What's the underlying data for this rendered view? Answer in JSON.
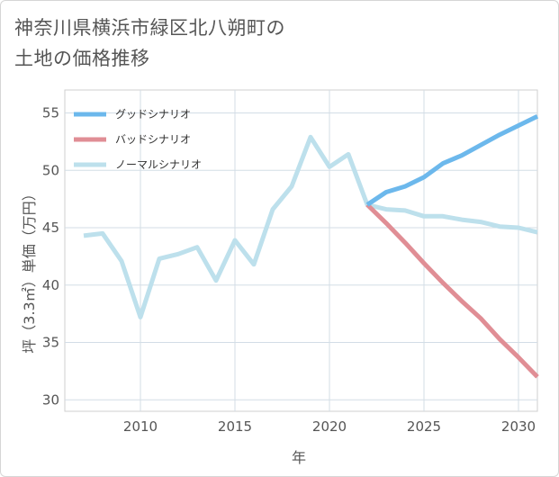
{
  "title_lines": [
    "神奈川県横浜市緑区北八朔町の",
    "土地の価格推移"
  ],
  "chart_data": {
    "type": "line",
    "title": "神奈川県横浜市緑区北八朔町の土地の価格推移",
    "xlabel": "年",
    "ylabel": "坪（3.3㎡）単価（万円）",
    "xlim": [
      2006,
      2031
    ],
    "ylim": [
      29,
      57
    ],
    "xticks": [
      2010,
      2015,
      2020,
      2025,
      2030
    ],
    "yticks": [
      30,
      35,
      40,
      45,
      50,
      55
    ],
    "grid": true,
    "legend_position": "top-left",
    "series": [
      {
        "name": "グッドシナリオ",
        "color": "#6cb8ec",
        "x": [
          2022,
          2023,
          2024,
          2025,
          2026,
          2027,
          2028,
          2029,
          2030,
          2031
        ],
        "values": [
          47.0,
          48.1,
          48.6,
          49.4,
          50.6,
          51.3,
          52.2,
          53.1,
          53.9,
          54.7
        ]
      },
      {
        "name": "バッドシナリオ",
        "color": "#e08e95",
        "x": [
          2022,
          2023,
          2024,
          2025,
          2026,
          2027,
          2028,
          2029,
          2030,
          2031
        ],
        "values": [
          47.0,
          45.4,
          43.7,
          41.9,
          40.2,
          38.6,
          37.1,
          35.3,
          33.7,
          32.0
        ]
      },
      {
        "name": "ノーマルシナリオ",
        "color": "#bde0ec",
        "x": [
          2007,
          2008,
          2009,
          2010,
          2011,
          2012,
          2013,
          2014,
          2015,
          2016,
          2017,
          2018,
          2019,
          2020,
          2021,
          2022,
          2023,
          2024,
          2025,
          2026,
          2027,
          2028,
          2029,
          2030,
          2031
        ],
        "values": [
          44.3,
          44.5,
          42.1,
          37.2,
          42.3,
          42.7,
          43.3,
          40.4,
          43.9,
          41.8,
          46.6,
          48.6,
          52.9,
          50.3,
          51.4,
          47.0,
          46.6,
          46.5,
          46.0,
          46.0,
          45.7,
          45.5,
          45.1,
          45.0,
          44.6
        ]
      }
    ]
  }
}
